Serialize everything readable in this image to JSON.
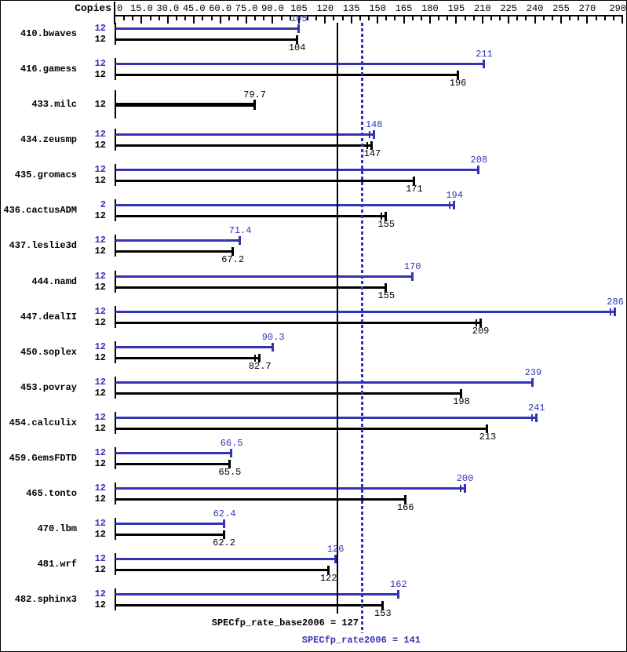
{
  "chart_data": {
    "type": "bar",
    "orientation": "horizontal",
    "copies_header": "Copies",
    "axis": {
      "min": 0,
      "max": 290,
      "minor_tick_step": 5,
      "major_tick_step": 15,
      "position": "top",
      "ticks": [
        {
          "v": 0,
          "t": "0"
        },
        {
          "v": 15,
          "t": "15.0"
        },
        {
          "v": 30,
          "t": "30.0"
        },
        {
          "v": 45,
          "t": "45.0"
        },
        {
          "v": 60,
          "t": "60.0"
        },
        {
          "v": 75,
          "t": "75.0"
        },
        {
          "v": 90,
          "t": "90.0"
        },
        {
          "v": 105,
          "t": "105"
        },
        {
          "v": 120,
          "t": "120"
        },
        {
          "v": 135,
          "t": "135"
        },
        {
          "v": 150,
          "t": "150"
        },
        {
          "v": 165,
          "t": "165"
        },
        {
          "v": 180,
          "t": "180"
        },
        {
          "v": 195,
          "t": "195"
        },
        {
          "v": 210,
          "t": "210"
        },
        {
          "v": 225,
          "t": "225"
        },
        {
          "v": 240,
          "t": "240"
        },
        {
          "v": 255,
          "t": "255"
        },
        {
          "v": 270,
          "t": "270"
        },
        {
          "v": 290,
          "t": "290"
        }
      ]
    },
    "series": [
      {
        "name": "peak",
        "color": "#3333b4"
      },
      {
        "name": "base",
        "color": "#000000"
      }
    ],
    "benchmarks": [
      {
        "name": "410.bwaves",
        "peak": {
          "copies": "12",
          "value": 105,
          "label": "105"
        },
        "base": {
          "copies": "12",
          "value": 104,
          "label": "104"
        }
      },
      {
        "name": "416.gamess",
        "peak": {
          "copies": "12",
          "value": 211,
          "label": "211"
        },
        "base": {
          "copies": "12",
          "value": 196,
          "label": "196"
        }
      },
      {
        "name": "433.milc",
        "peak": null,
        "base": {
          "copies": "12",
          "value": 79.7,
          "label": "79.7",
          "thick": true
        }
      },
      {
        "name": "434.zeusmp",
        "peak": {
          "copies": "12",
          "value": 148,
          "label": "148",
          "spread": true
        },
        "base": {
          "copies": "12",
          "value": 147,
          "label": "147",
          "spread": true
        }
      },
      {
        "name": "435.gromacs",
        "peak": {
          "copies": "12",
          "value": 208,
          "label": "208"
        },
        "base": {
          "copies": "12",
          "value": 171,
          "label": "171"
        }
      },
      {
        "name": "436.cactusADM",
        "peak": {
          "copies": "2",
          "value": 194,
          "label": "194",
          "spread": true
        },
        "base": {
          "copies": "12",
          "value": 155,
          "label": "155",
          "spread": true
        }
      },
      {
        "name": "437.leslie3d",
        "peak": {
          "copies": "12",
          "value": 71.4,
          "label": "71.4"
        },
        "base": {
          "copies": "12",
          "value": 67.2,
          "label": "67.2"
        }
      },
      {
        "name": "444.namd",
        "peak": {
          "copies": "12",
          "value": 170,
          "label": "170"
        },
        "base": {
          "copies": "12",
          "value": 155,
          "label": "155"
        }
      },
      {
        "name": "447.dealII",
        "peak": {
          "copies": "12",
          "value": 286,
          "label": "286",
          "spread": true
        },
        "base": {
          "copies": "12",
          "value": 209,
          "label": "209",
          "spread": true
        }
      },
      {
        "name": "450.soplex",
        "peak": {
          "copies": "12",
          "value": 90.3,
          "label": "90.3"
        },
        "base": {
          "copies": "12",
          "value": 82.7,
          "label": "82.7",
          "spread": true
        }
      },
      {
        "name": "453.povray",
        "peak": {
          "copies": "12",
          "value": 239,
          "label": "239"
        },
        "base": {
          "copies": "12",
          "value": 198,
          "label": "198"
        }
      },
      {
        "name": "454.calculix",
        "peak": {
          "copies": "12",
          "value": 241,
          "label": "241",
          "spread": true
        },
        "base": {
          "copies": "12",
          "value": 213,
          "label": "213"
        }
      },
      {
        "name": "459.GemsFDTD",
        "peak": {
          "copies": "12",
          "value": 66.5,
          "label": "66.5"
        },
        "base": {
          "copies": "12",
          "value": 65.5,
          "label": "65.5"
        }
      },
      {
        "name": "465.tonto",
        "peak": {
          "copies": "12",
          "value": 200,
          "label": "200",
          "spread": true
        },
        "base": {
          "copies": "12",
          "value": 166,
          "label": "166"
        }
      },
      {
        "name": "470.lbm",
        "peak": {
          "copies": "12",
          "value": 62.4,
          "label": "62.4"
        },
        "base": {
          "copies": "12",
          "value": 62.2,
          "label": "62.2"
        }
      },
      {
        "name": "481.wrf",
        "peak": {
          "copies": "12",
          "value": 126,
          "label": "126"
        },
        "base": {
          "copies": "12",
          "value": 122,
          "label": "122"
        }
      },
      {
        "name": "482.sphinx3",
        "peak": {
          "copies": "12",
          "value": 162,
          "label": "162"
        },
        "base": {
          "copies": "12",
          "value": 153,
          "label": "153"
        }
      }
    ],
    "reference_lines": [
      {
        "id": "base_mean",
        "style": "solid",
        "color": "#000000",
        "value": 127,
        "label": "SPECfp_rate_base2006 = 127"
      },
      {
        "id": "peak_mean",
        "style": "dotted",
        "color": "#3333b4",
        "value": 141,
        "label": "SPECfp_rate2006 = 141"
      }
    ]
  },
  "colors": {
    "peak_blue": "#3333b4",
    "base_black": "#000000",
    "background": "#ffffff",
    "border": "#000000"
  }
}
